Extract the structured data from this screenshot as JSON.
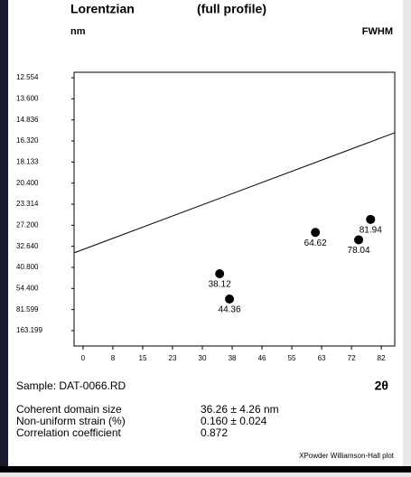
{
  "chart_data": {
    "type": "scatter",
    "title": "Lorentzian",
    "subtitle": "(full profile)",
    "y_label": "nm",
    "y_title": "FWHM",
    "x_label": "2θ",
    "xlim": [
      -0.3,
      10.45
    ],
    "xticks": [
      {
        "value": 0,
        "label": "0"
      },
      {
        "value": 1,
        "label": "8"
      },
      {
        "value": 2,
        "label": "15"
      },
      {
        "value": 3,
        "label": "23"
      },
      {
        "value": 4,
        "label": "30"
      },
      {
        "value": 5,
        "label": "38"
      },
      {
        "value": 6,
        "label": "46"
      },
      {
        "value": 7,
        "label": "55"
      },
      {
        "value": 8,
        "label": "63"
      },
      {
        "value": 9,
        "label": "72"
      },
      {
        "value": 10,
        "label": "82"
      }
    ],
    "ylim": [
      0.27,
      13.26
    ],
    "yticks": [
      {
        "value": 13,
        "label": "12.554"
      },
      {
        "value": 12,
        "label": "13.600"
      },
      {
        "value": 11,
        "label": "14.836"
      },
      {
        "value": 10,
        "label": "16.320"
      },
      {
        "value": 9,
        "label": "18.133"
      },
      {
        "value": 8,
        "label": "20.400"
      },
      {
        "value": 7,
        "label": "23.314"
      },
      {
        "value": 6,
        "label": "27.200"
      },
      {
        "value": 5,
        "label": "32.640"
      },
      {
        "value": 4,
        "label": "40.800"
      },
      {
        "value": 3,
        "label": "54.400"
      },
      {
        "value": 2,
        "label": "81.599"
      },
      {
        "value": 1,
        "label": "163.199"
      }
    ],
    "x": [
      4.58,
      4.91,
      7.79,
      9.24,
      9.64
    ],
    "values": [
      3.7,
      2.5,
      5.66,
      5.31,
      6.28
    ],
    "value_labels": [
      "38.12",
      "44.36",
      "64.62",
      "78.04",
      "81.94"
    ],
    "color": "#000000",
    "fit_line": {
      "x": [
        -0.3,
        10.45
      ],
      "y": [
        4.69,
        10.39
      ]
    }
  },
  "sample": "Sample: DAT-0066.RD",
  "results": [
    {
      "label": "Coherent domain size",
      "value": "36.26 ± 4.26 nm"
    },
    {
      "label": "Non-uniform strain (%)",
      "value": "0.160 ± 0.024"
    },
    {
      "label": "Correlation coefficient",
      "value": "0.872"
    }
  ],
  "footer": "XPowder Williamson-Hall plot"
}
